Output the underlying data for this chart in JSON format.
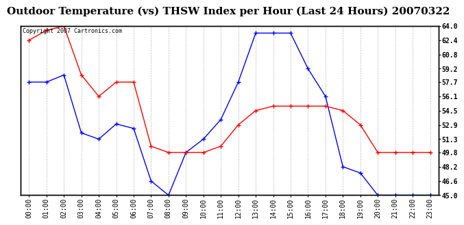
{
  "title": "Outdoor Temperature (vs) THSW Index per Hour (Last 24 Hours) 20070322",
  "copyright": "Copyright 2007 Cartronics.com",
  "hours": [
    "00:00",
    "01:00",
    "02:00",
    "03:00",
    "04:00",
    "05:00",
    "06:00",
    "07:00",
    "08:00",
    "09:00",
    "10:00",
    "11:00",
    "12:00",
    "13:00",
    "14:00",
    "15:00",
    "16:00",
    "17:00",
    "18:00",
    "19:00",
    "20:00",
    "21:00",
    "22:00",
    "23:00"
  ],
  "blue_data": [
    57.7,
    57.7,
    58.5,
    52.0,
    51.3,
    53.0,
    52.5,
    46.6,
    45.0,
    49.8,
    51.3,
    53.5,
    57.7,
    63.2,
    63.2,
    63.2,
    59.2,
    56.1,
    48.2,
    47.5,
    45.0,
    45.0,
    45.0,
    45.0
  ],
  "red_data": [
    62.4,
    63.5,
    64.0,
    58.5,
    56.1,
    57.7,
    57.7,
    50.5,
    49.8,
    49.8,
    49.8,
    50.5,
    52.9,
    54.5,
    55.0,
    55.0,
    55.0,
    55.0,
    54.5,
    52.9,
    49.8,
    49.8,
    49.8,
    49.8
  ],
  "blue_color": "#0000ff",
  "red_color": "#ff0000",
  "bg_color": "#ffffff",
  "grid_color": "#bbbbbb",
  "ymin": 45.0,
  "ymax": 64.0,
  "yticks": [
    45.0,
    46.6,
    48.2,
    49.8,
    51.3,
    52.9,
    54.5,
    56.1,
    57.7,
    59.2,
    60.8,
    62.4,
    64.0
  ],
  "title_fontsize": 11,
  "copyright_fontsize": 6,
  "tick_fontsize": 7,
  "ytick_fontsize": 7
}
